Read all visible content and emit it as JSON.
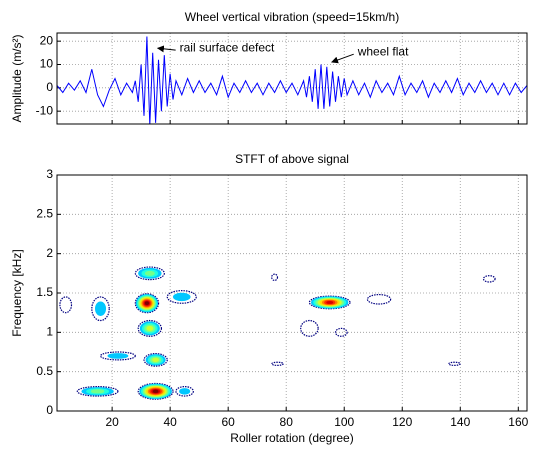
{
  "chart_data": [
    {
      "type": "line",
      "title": "Wheel vertical vibration (speed=15km/h)",
      "ylabel": "Amplitude (m/s²)",
      "color": "#0000ff",
      "x": [
        1,
        3,
        5,
        7,
        9,
        11,
        13,
        15,
        17,
        19,
        21,
        23,
        25,
        27,
        28,
        29,
        30,
        31,
        32,
        33,
        34,
        35,
        36,
        37,
        38,
        39,
        40,
        41,
        42,
        44,
        46,
        48,
        50,
        52,
        54,
        56,
        58,
        60,
        62,
        64,
        66,
        68,
        70,
        72,
        74,
        76,
        78,
        80,
        82,
        84,
        86,
        87,
        88,
        89,
        90,
        91,
        92,
        93,
        94,
        95,
        96,
        97,
        98,
        99,
        100,
        101,
        103,
        105,
        107,
        109,
        111,
        113,
        115,
        117,
        119,
        121,
        123,
        125,
        127,
        129,
        131,
        133,
        135,
        137,
        139,
        141,
        143,
        145,
        147,
        149,
        151,
        153,
        155,
        157,
        159,
        161,
        163
      ],
      "values": [
        1,
        -2,
        2,
        -1,
        3,
        -2,
        8,
        -3,
        -8,
        -1,
        4,
        -3,
        2,
        -2,
        3,
        -6,
        10,
        -12,
        22,
        -16,
        15,
        -15,
        12,
        -10,
        14,
        -8,
        6,
        -5,
        3,
        -3,
        4,
        -2,
        3,
        -2,
        2,
        -3,
        5,
        -4,
        2,
        -2,
        3,
        -2,
        2,
        -3,
        2,
        -2,
        3,
        -2,
        2,
        -3,
        3,
        -4,
        5,
        -6,
        8,
        -9,
        10,
        -9,
        9,
        -8,
        7,
        -6,
        5,
        -4,
        4,
        -3,
        3,
        -3,
        2,
        -4,
        3,
        -2,
        2,
        -3,
        5,
        -3,
        2,
        -2,
        3,
        -4,
        2,
        -2,
        3,
        -2,
        4,
        -3,
        2,
        -2,
        3,
        -2,
        2,
        -3,
        2,
        -3,
        2,
        -2,
        1
      ],
      "xlim": [
        1,
        163
      ],
      "ylim": [
        -15.5,
        23.5
      ],
      "xticks": [
        20,
        40,
        60,
        80,
        100,
        120,
        140,
        160
      ],
      "yticks": [
        20,
        10,
        0,
        -10
      ],
      "grid": true,
      "annotations": [
        {
          "text": "rail surface defect",
          "x": 35,
          "y": 17
        },
        {
          "text": "wheel flat",
          "x": 95,
          "y": 11
        }
      ]
    },
    {
      "type": "contour",
      "title": "STFT of above signal",
      "xlabel": "Roller rotation (degree)",
      "ylabel": "Frequency [kHz]",
      "x": [
        35,
        32,
        95,
        35,
        33,
        33,
        15,
        22,
        4,
        16,
        44,
        150,
        99,
        88,
        45,
        77,
        138,
        76,
        112
      ],
      "y": [
        0.25,
        1.37,
        1.38,
        0.65,
        1.05,
        1.75,
        0.25,
        0.7,
        1.35,
        1.3,
        1.45,
        1.68,
        1.0,
        1.05,
        0.25,
        0.6,
        0.6,
        1.7,
        1.42
      ],
      "values": [
        10,
        10,
        9,
        5,
        5,
        4,
        4,
        2,
        1,
        2,
        2,
        1,
        1,
        1.5,
        2,
        1,
        1,
        1,
        1
      ],
      "x_spread": [
        6,
        4,
        7,
        4,
        4,
        5,
        7,
        6,
        2,
        3,
        5,
        2,
        2,
        3,
        3,
        2,
        2,
        1,
        4
      ],
      "y_spread": [
        0.1,
        0.12,
        0.08,
        0.08,
        0.1,
        0.08,
        0.06,
        0.05,
        0.1,
        0.15,
        0.08,
        0.04,
        0.05,
        0.1,
        0.06,
        0.02,
        0.02,
        0.04,
        0.06
      ],
      "xlim": [
        1,
        163
      ],
      "ylim": [
        0,
        3
      ],
      "xticks": [
        20,
        40,
        60,
        80,
        100,
        120,
        140,
        160
      ],
      "yticks": [
        0,
        0.5,
        1,
        1.5,
        2,
        2.5,
        3
      ],
      "grid": true
    }
  ]
}
